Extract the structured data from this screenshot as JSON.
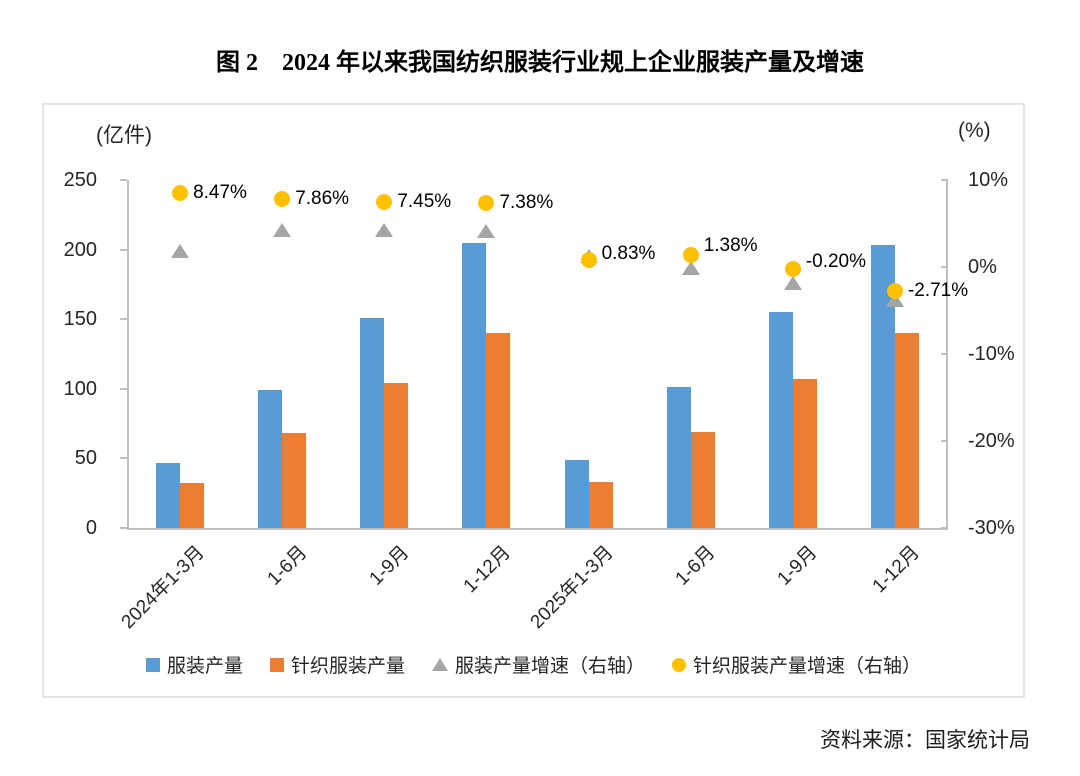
{
  "source": "资料来源：国家统计局",
  "chart_data": {
    "type": "bar",
    "title": "图 2　2024 年以来我国纺织服装行业规上企业服装产量及增速",
    "categories": [
      "2024年1-3月",
      "1-6月",
      "1-9月",
      "1-12月",
      "2025年1-3月",
      "1-6月",
      "1-9月",
      "1-12月"
    ],
    "left_axis": {
      "unit": "(亿件)",
      "min": 0,
      "max": 250,
      "ticks": [
        "250",
        "200",
        "150",
        "100",
        "50",
        "0"
      ]
    },
    "right_axis": {
      "unit": "(%)",
      "min": -30,
      "max": 10,
      "ticks": [
        "10%",
        "0%",
        "-10%",
        "-20%",
        "-30%"
      ]
    },
    "grid": false,
    "legend_position": "bottom",
    "axis_color": "#BFBFBF",
    "series": [
      {
        "name": "服装产量",
        "type": "bar",
        "axis": "left",
        "marker": "square",
        "color": "#5B9BD5",
        "values": [
          47,
          99,
          151,
          205,
          49,
          101,
          155,
          203
        ]
      },
      {
        "name": "针织服装产量",
        "type": "bar",
        "axis": "left",
        "marker": "square",
        "color": "#ED7D31",
        "values": [
          32,
          68,
          104,
          140,
          33,
          69,
          107,
          140
        ]
      },
      {
        "name": "服装产量增速（右轴）",
        "type": "scatter",
        "axis": "right",
        "marker": "triangle",
        "color": "#A5A5A5",
        "values": [
          1.8,
          4.3,
          4.3,
          4.1,
          1.3,
          -0.1,
          -1.8,
          -3.8
        ]
      },
      {
        "name": "针织服装产量增速（右轴）",
        "type": "scatter",
        "axis": "right",
        "marker": "circle",
        "color": "#FFC000",
        "values": [
          8.47,
          7.86,
          7.45,
          7.38,
          0.83,
          1.38,
          -0.2,
          -2.71
        ],
        "data_labels": [
          "8.47%",
          "7.86%",
          "7.45%",
          "7.38%",
          "0.83%",
          "1.38%",
          "-0.20%",
          "-2.71%"
        ]
      }
    ]
  }
}
